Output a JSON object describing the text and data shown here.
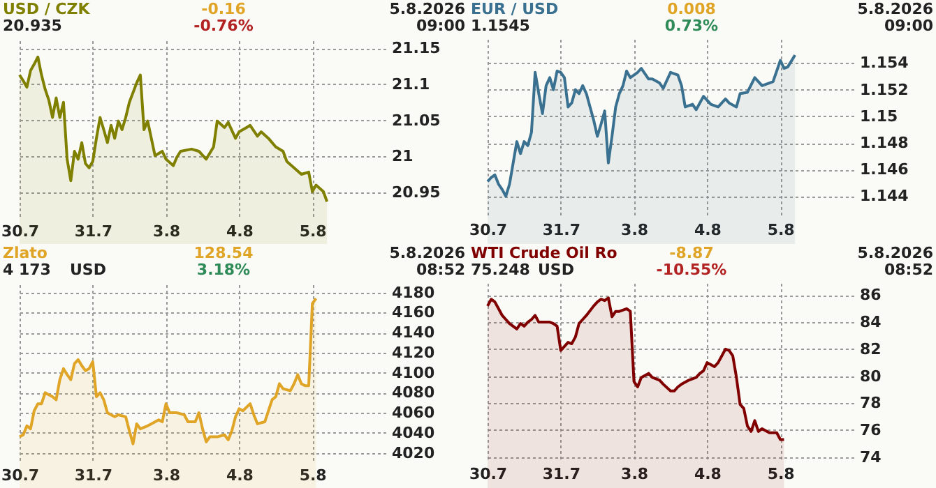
{
  "chart_data": [
    {
      "type": "area",
      "title": "USD / CZK",
      "subtitle": "20.935",
      "annotations": [
        "-0.16",
        "-0.76%",
        "5.8.2026",
        "09:00"
      ],
      "grid": true,
      "categories": [
        "30.7",
        null,
        null,
        null,
        null,
        null,
        null,
        null,
        null,
        null,
        null,
        null,
        null,
        null,
        null,
        null,
        null,
        null,
        null,
        null,
        "31.7",
        null,
        null,
        null,
        null,
        null,
        null,
        null,
        null,
        null,
        null,
        null,
        null,
        null,
        null,
        null,
        null,
        null,
        null,
        null,
        "3.8",
        null,
        null,
        null,
        null,
        null,
        null,
        null,
        null,
        null,
        null,
        null,
        null,
        null,
        null,
        null,
        null,
        null,
        null,
        null,
        "4.8",
        null,
        null,
        null,
        null,
        null,
        null,
        null,
        null,
        null,
        null,
        null,
        null,
        null,
        null,
        null,
        null,
        null,
        null,
        null,
        "5.8",
        null,
        null,
        null,
        null,
        null,
        null,
        null,
        null,
        null,
        null,
        null,
        null,
        null,
        null,
        null,
        null,
        null,
        null,
        null,
        null
      ],
      "ylim": [
        20.913,
        21.161
      ],
      "yticks": [
        20.95,
        21,
        21.05,
        21.1,
        21.15
      ],
      "series": [
        {
          "color": "#808000",
          "values": [
            21.113,
            21.105,
            21.096,
            21.119,
            21.128,
            21.138,
            21.113,
            21.093,
            21.078,
            21.054,
            21.081,
            21.054,
            21.075,
            20.996,
            20.966,
            21.007,
            20.996,
            21.019,
            20.99,
            20.984,
            20.993,
            21.025,
            21.054,
            21.037,
            21.019,
            21.043,
            21.025,
            21.049,
            21.037,
            21.054,
            21.075,
            null,
            21.102,
            21.113,
            21.037,
            21.049,
            21.025,
            21.001,
            null,
            21.007,
            20.996,
            null,
            20.987,
            20.999,
            21.007,
            null,
            null,
            21.01,
            null,
            21.007,
            null,
            20.996,
            null,
            21.013,
            21.049,
            null,
            21.04,
            21.047,
            null,
            21.025,
            21.034,
            null,
            21.04,
            21.043,
            null,
            21.028,
            21.034,
            null,
            21.025,
            null,
            21.013,
            null,
            21.007,
            20.993,
            null,
            20.984,
            null,
            20.975,
            null,
            20.978,
            20.951,
            20.96,
            null,
            20.951,
            20.937,
            null,
            null,
            null,
            null,
            null,
            null,
            null,
            null,
            null,
            null,
            null,
            null,
            null,
            null,
            null,
            null
          ]
        }
      ]
    },
    {
      "type": "area",
      "title": "EUR / USD",
      "subtitle": "1.1545",
      "annotations": [
        "0.008",
        "0.73%",
        "5.8.2026",
        "09:00"
      ],
      "grid": true,
      "categories": [
        "30.7",
        null,
        null,
        null,
        null,
        null,
        null,
        null,
        null,
        null,
        null,
        null,
        null,
        null,
        null,
        null,
        null,
        null,
        null,
        null,
        "31.7",
        null,
        null,
        null,
        null,
        null,
        null,
        null,
        null,
        null,
        null,
        null,
        null,
        null,
        null,
        null,
        null,
        null,
        null,
        null,
        "3.8",
        null,
        null,
        null,
        null,
        null,
        null,
        null,
        null,
        null,
        null,
        null,
        null,
        null,
        null,
        null,
        null,
        null,
        null,
        null,
        "4.8",
        null,
        null,
        null,
        null,
        null,
        null,
        null,
        null,
        null,
        null,
        null,
        null,
        null,
        null,
        null,
        null,
        null,
        null,
        null,
        "5.8",
        null,
        null,
        null,
        null,
        null,
        null,
        null,
        null,
        null,
        null,
        null,
        null,
        null,
        null,
        null,
        null,
        null,
        null,
        null,
        null
      ],
      "ylim": [
        1.1424,
        1.1558
      ],
      "yticks": [
        1.144,
        1.146,
        1.148,
        1.15,
        1.152,
        1.154
      ],
      "series": [
        {
          "color": "#3b7190",
          "values": [
            1.1451,
            1.1454,
            1.1456,
            1.1449,
            1.1445,
            1.144,
            1.1449,
            1.1465,
            1.1481,
            1.1472,
            1.1481,
            1.1478,
            1.1488,
            1.1533,
            1.1517,
            1.1502,
            1.1523,
            1.1529,
            1.152,
            1.1534,
            1.1533,
            1.1529,
            1.1507,
            1.151,
            1.152,
            1.1517,
            1.1523,
            1.1517,
            1.1507,
            1.1497,
            1.1485,
            1.1494,
            1.1504,
            1.1465,
            1.1485,
            1.1507,
            1.1517,
            1.1523,
            1.1534,
            1.1529,
            null,
            1.1533,
            1.1536,
            null,
            1.1528,
            1.1528,
            null,
            1.1525,
            1.1521,
            null,
            1.1533,
            null,
            1.1531,
            1.1523,
            1.1507,
            null,
            1.1509,
            1.1505,
            null,
            1.1515,
            null,
            1.1509,
            null,
            1.1507,
            null,
            1.1513,
            1.151,
            null,
            1.1507,
            1.1517,
            null,
            1.1518,
            null,
            1.1529,
            null,
            1.1523,
            null,
            1.1525,
            1.1526,
            null,
            1.1542,
            1.1536,
            1.1537,
            null,
            1.1546,
            null,
            null,
            null,
            null,
            null,
            null,
            null,
            null,
            null,
            null,
            null,
            null,
            null,
            null,
            null,
            null
          ]
        }
      ]
    },
    {
      "type": "area",
      "title": "Zlato",
      "subtitle": "4 173",
      "annotations": [
        "128.54",
        "3.18%",
        "5.8.2026",
        "08:52",
        "USD"
      ],
      "grid": true,
      "categories": [
        "30.7",
        null,
        null,
        null,
        null,
        null,
        null,
        null,
        null,
        null,
        null,
        null,
        null,
        null,
        null,
        null,
        null,
        null,
        null,
        null,
        "31.7",
        null,
        null,
        null,
        null,
        null,
        null,
        null,
        null,
        null,
        null,
        null,
        null,
        null,
        null,
        null,
        null,
        null,
        null,
        null,
        "3.8",
        null,
        null,
        null,
        null,
        null,
        null,
        null,
        null,
        null,
        null,
        null,
        null,
        null,
        null,
        null,
        null,
        null,
        null,
        null,
        "4.8",
        null,
        null,
        null,
        null,
        null,
        null,
        null,
        null,
        null,
        null,
        null,
        null,
        null,
        null,
        null,
        null,
        null,
        null,
        null,
        "5.8",
        null,
        null,
        null,
        null,
        null,
        null,
        null,
        null,
        null,
        null,
        null,
        null,
        null,
        null,
        null,
        null,
        null,
        null,
        null,
        null
      ],
      "ylim": [
        4010,
        4188
      ],
      "yticks": [
        4020,
        4040,
        4060,
        4080,
        4100,
        4120,
        4140,
        4160,
        4180
      ],
      "series": [
        {
          "color": "#e0a526",
          "values": [
            4036,
            4038,
            4047,
            4044,
            4062,
            4069,
            4069,
            4080,
            4078,
            4076,
            4073,
            4093,
            4104,
            4098,
            4093,
            4109,
            4113,
            4107,
            4102,
            4104,
            4111,
            4076,
            4080,
            4073,
            4060,
            4058,
            4056,
            4058,
            null,
            4056,
            4042,
            4029,
            4049,
            4044,
            null,
            4047,
            4049,
            null,
            4053,
            4051,
            4069,
            4060,
            null,
            4060,
            null,
            4058,
            4051,
            null,
            4051,
            4060,
            4044,
            4031,
            4036,
            null,
            4036,
            null,
            4038,
            4033,
            4042,
            4056,
            4064,
            4062,
            null,
            4069,
            4058,
            4049,
            null,
            4051,
            null,
            4073,
            4076,
            4089,
            4084,
            null,
            4082,
            4089,
            4098,
            4089,
            4087,
            4087,
            4169,
            4174,
            null,
            null,
            null,
            null,
            null,
            null,
            null,
            null,
            null,
            null,
            null,
            null,
            null,
            null,
            null,
            null,
            null,
            null,
            null
          ]
        }
      ]
    },
    {
      "type": "area",
      "title": "WTI Crude Oil Ro",
      "subtitle": "75.248",
      "annotations": [
        "-8.87",
        "-10.55%",
        "5.8.2026",
        "08:52",
        "USD"
      ],
      "grid": true,
      "categories": [
        "30.7",
        null,
        null,
        null,
        null,
        null,
        null,
        null,
        null,
        null,
        null,
        null,
        null,
        null,
        null,
        null,
        null,
        null,
        null,
        null,
        "31.7",
        null,
        null,
        null,
        null,
        null,
        null,
        null,
        null,
        null,
        null,
        null,
        null,
        null,
        null,
        null,
        null,
        null,
        null,
        null,
        "3.8",
        null,
        null,
        null,
        null,
        null,
        null,
        null,
        null,
        null,
        null,
        null,
        null,
        null,
        null,
        null,
        null,
        null,
        null,
        null,
        "4.8",
        null,
        null,
        null,
        null,
        null,
        null,
        null,
        null,
        null,
        null,
        null,
        null,
        null,
        null,
        null,
        null,
        null,
        null,
        null,
        "5.8",
        null,
        null,
        null,
        null,
        null,
        null,
        null,
        null,
        null,
        null,
        null,
        null,
        null,
        null,
        null,
        null,
        null,
        null,
        null,
        null
      ],
      "ylim": [
        73.67,
        86.9
      ],
      "yticks": [
        74,
        76,
        78,
        80,
        82,
        84,
        86
      ],
      "series": [
        {
          "color": "#800000",
          "values": [
            85.2,
            85.7,
            85.5,
            85.0,
            84.5,
            84.2,
            83.9,
            null,
            83.5,
            83.9,
            83.7,
            84.0,
            84.2,
            84.5,
            84.0,
            84.0,
            null,
            84.0,
            83.9,
            83.7,
            81.9,
            82.2,
            82.5,
            82.4,
            82.9,
            83.9,
            84.2,
            84.5,
            null,
            85.2,
            85.5,
            85.7,
            85.6,
            85.8,
            84.4,
            84.8,
            84.8,
            null,
            85.0,
            84.8,
            79.6,
            79.2,
            79.9,
            null,
            80.2,
            79.9,
            null,
            79.7,
            79.4,
            null,
            78.9,
            78.9,
            79.2,
            79.4,
            null,
            79.7,
            null,
            79.9,
            80.2,
            80.4,
            81.0,
            null,
            80.7,
            81.0,
            null,
            82.0,
            81.9,
            81.5,
            79.9,
            77.9,
            77.6,
            76.3,
            75.9,
            76.7,
            75.9,
            76.1,
            null,
            75.8,
            null,
            75.8,
            75.3,
            75.3,
            null,
            null,
            null,
            null,
            null,
            null,
            null,
            null,
            null,
            null,
            null,
            null,
            null,
            null,
            null,
            null,
            null,
            null,
            null
          ]
        }
      ]
    }
  ]
}
